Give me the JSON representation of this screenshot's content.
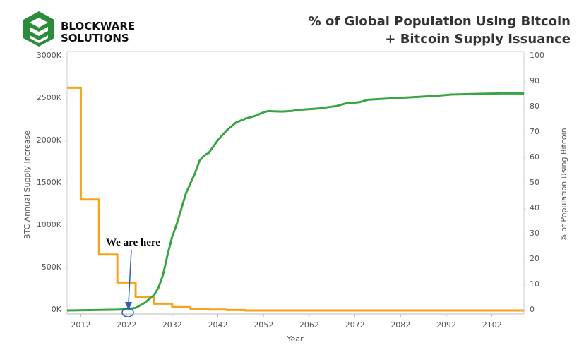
{
  "brand": {
    "line1": "BLOCKWARE",
    "line2": "SOLUTIONS"
  },
  "chart_data": {
    "type": "line",
    "title": "% of Global Population Using Bitcoin",
    "subtitle": "+ Bitcoin Supply Issuance",
    "xlabel": "Year",
    "ylabel": "BTC Annual Supply Increase",
    "y2label": "% of Population Using Bitcoin",
    "annotation": "We are here",
    "xlim": [
      2009,
      2109
    ],
    "xticks": [
      2012,
      2022,
      2032,
      2042,
      2052,
      2062,
      2072,
      2082,
      2092,
      2102
    ],
    "ylim": [
      0,
      3000000
    ],
    "yticks": [
      {
        "value": 0,
        "label": "0K"
      },
      {
        "value": 500000,
        "label": "500K"
      },
      {
        "value": 1000000,
        "label": "1000K"
      },
      {
        "value": 1500000,
        "label": "1500K"
      },
      {
        "value": 2000000,
        "label": "2000K"
      },
      {
        "value": 2500000,
        "label": "2500K"
      },
      {
        "value": 3000000,
        "label": "3000K"
      }
    ],
    "y2lim": [
      0,
      100
    ],
    "y2ticks": [
      0,
      10,
      20,
      30,
      40,
      50,
      60,
      70,
      80,
      90,
      100
    ],
    "grid": false,
    "series": [
      {
        "name": "BTC Annual Supply Increase",
        "color": "#f5a21c",
        "x": [
          2009,
          2012,
          2012,
          2016,
          2016,
          2020,
          2020,
          2024,
          2024,
          2028,
          2028,
          2032,
          2032,
          2036,
          2036,
          2040,
          2040,
          2044,
          2044,
          2048,
          2048,
          2109
        ],
        "values": [
          2630000,
          2630000,
          1310000,
          1310000,
          660000,
          660000,
          330000,
          330000,
          160000,
          160000,
          80000,
          80000,
          40000,
          40000,
          20000,
          20000,
          10000,
          10000,
          5000,
          5000,
          0,
          0
        ]
      },
      {
        "name": "% of Population Using Bitcoin",
        "color": "#3aa444",
        "axis": "y2",
        "x": [
          2009,
          2020,
          2022,
          2024,
          2026,
          2028,
          2029,
          2030,
          2031,
          2032,
          2033,
          2034,
          2035,
          2036,
          2037,
          2038,
          2039,
          2040,
          2042,
          2044,
          2046,
          2048,
          2050,
          2052,
          2053,
          2056,
          2058,
          2060,
          2064,
          2068,
          2070,
          2073,
          2075,
          2080,
          2085,
          2090,
          2093,
          2100,
          2105,
          2109
        ],
        "values": [
          0,
          0.3,
          0.5,
          1,
          3,
          6,
          9,
          14,
          22,
          29,
          34,
          40,
          46,
          50,
          54,
          59,
          61,
          62,
          67,
          71,
          74,
          75.5,
          76.5,
          78,
          78.5,
          78.3,
          78.5,
          79,
          79.5,
          80.5,
          81.5,
          82,
          83,
          83.5,
          84,
          84.5,
          85,
          85.3,
          85.5,
          85.4
        ]
      }
    ]
  }
}
